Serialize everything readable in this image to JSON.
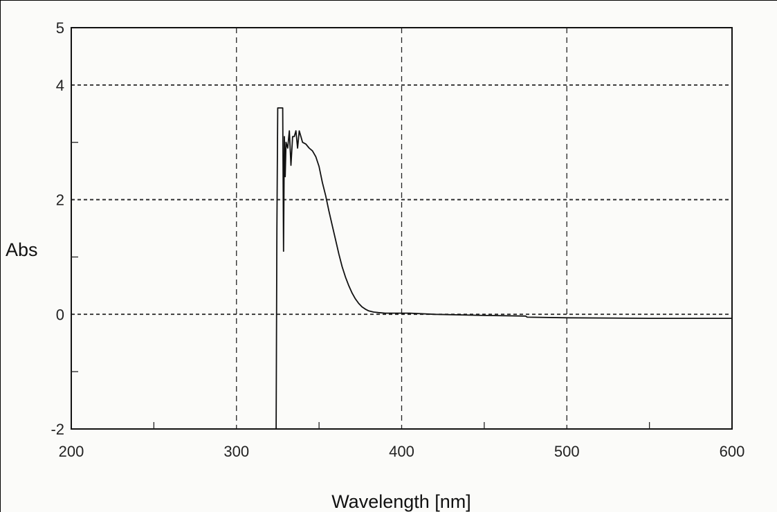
{
  "chart_data": {
    "type": "line",
    "title": "",
    "xlabel": "Wavelength [nm]",
    "ylabel": "Abs",
    "xlim": [
      200,
      600
    ],
    "ylim": [
      -2,
      5
    ],
    "x_ticks": [
      200,
      300,
      400,
      500,
      600
    ],
    "y_ticks": [
      5,
      4,
      2,
      0,
      -2
    ],
    "grid": true,
    "legend": "none",
    "line_color": "#111111",
    "series": [
      {
        "x": [
          324,
          324.5,
          325,
          326,
          327,
          328,
          328.5,
          329,
          329.5,
          330,
          331,
          332,
          333,
          334,
          335,
          336,
          337,
          338,
          339,
          340,
          342,
          344,
          346,
          348,
          350,
          352,
          354,
          356,
          358,
          360,
          362,
          364,
          366,
          368,
          370,
          372,
          374,
          376,
          378,
          380,
          383,
          386,
          390,
          395,
          400,
          405,
          420,
          450,
          475,
          476,
          500,
          550,
          600
        ],
        "y": [
          -2,
          1.5,
          3.6,
          3.6,
          3.6,
          3.6,
          1.1,
          3.1,
          2.4,
          3.0,
          2.9,
          3.2,
          2.6,
          3.1,
          3.1,
          3.2,
          2.9,
          3.2,
          3.1,
          3.0,
          2.97,
          2.9,
          2.85,
          2.75,
          2.58,
          2.3,
          2.07,
          1.8,
          1.55,
          1.3,
          1.05,
          0.83,
          0.65,
          0.5,
          0.37,
          0.27,
          0.19,
          0.13,
          0.09,
          0.06,
          0.04,
          0.03,
          0.02,
          0.02,
          0.02,
          0.02,
          0.0,
          -0.02,
          -0.03,
          -0.05,
          -0.06,
          -0.07,
          -0.07
        ]
      }
    ]
  }
}
